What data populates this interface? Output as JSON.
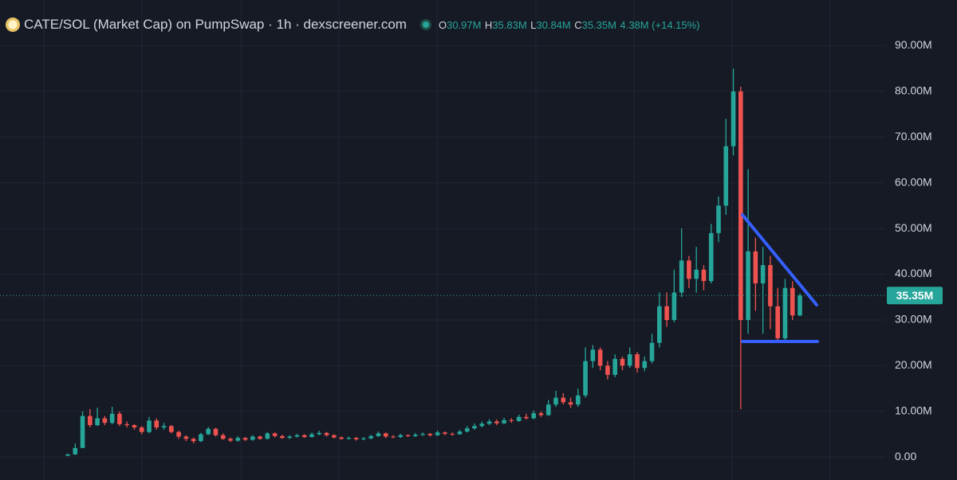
{
  "chart_data": {
    "type": "candlestick",
    "title": "CATE/SOL (Market Cap) on PumpSwap · 1h · dexscreener.com",
    "legend": {
      "o_label": "O",
      "o": "30.97M",
      "h_label": "H",
      "h": "35.83M",
      "l_label": "L",
      "l": "30.84M",
      "c_label": "C",
      "c": "35.35M",
      "change": "4.38M (+14.15%)"
    },
    "categories": [
      null,
      null,
      null,
      null,
      null,
      null,
      null,
      null,
      null,
      null,
      null,
      null,
      null,
      null,
      null,
      null,
      null,
      null,
      null,
      null,
      null,
      null,
      null,
      null,
      null,
      null,
      null,
      null,
      null,
      null,
      null,
      null,
      null,
      null,
      null,
      null,
      null,
      null,
      null,
      null,
      null,
      null,
      null,
      null,
      null,
      null,
      null,
      null,
      null,
      null,
      null,
      null,
      null,
      null,
      null,
      null,
      null,
      null,
      null,
      null,
      null,
      null,
      null,
      null,
      null,
      null,
      null,
      null,
      null,
      null,
      null,
      null,
      null,
      null,
      null,
      null,
      null,
      null,
      null,
      null,
      null,
      null,
      null,
      null,
      null,
      null,
      null,
      null,
      null,
      null,
      null,
      null,
      null,
      null,
      null,
      null,
      null,
      null,
      null,
      null
    ],
    "open": [
      0.3,
      0.6,
      2,
      9,
      7,
      8.5,
      7.5,
      9.5,
      7.2,
      7,
      6.5,
      5.5,
      8,
      6.5,
      6.8,
      5.5,
      4.5,
      4,
      3.5,
      5,
      6.2,
      4.8,
      4,
      3.6,
      4.2,
      3.8,
      4.5,
      4,
      5.2,
      4.6,
      4.2,
      4.5,
      4.8,
      4.4,
      5,
      5.3,
      4.8,
      4.3,
      4,
      4.2,
      3.9,
      4.1,
      4.6,
      5.2,
      4.5,
      4.4,
      4.8,
      4.6,
      4.9,
      5.1,
      4.8,
      5.4,
      5.1,
      5,
      5.6,
      6.3,
      6.8,
      7.3,
      7.8,
      7.4,
      8.1,
      7.9,
      8.8,
      8.5,
      9.6,
      9.2,
      11.5,
      13,
      12,
      11.5,
      13.5,
      21,
      23.5,
      20,
      18,
      21.5,
      20,
      22.5,
      19.5,
      21,
      25,
      33,
      30,
      36,
      43,
      39,
      41,
      38.5,
      49,
      55,
      68,
      80,
      30,
      45,
      38,
      42,
      33,
      26,
      37,
      30.97
    ],
    "high": [
      0.8,
      3,
      10,
      10.5,
      10.8,
      9,
      11,
      10,
      7.8,
      7.2,
      6.8,
      8.8,
      8.5,
      7.5,
      7,
      5.8,
      4.8,
      4.3,
      5.3,
      6.6,
      6.4,
      5.2,
      4.3,
      4.6,
      4.4,
      4.8,
      4.7,
      5.5,
      5.4,
      4.9,
      4.8,
      5.1,
      5,
      5.4,
      5.8,
      5.5,
      5,
      4.5,
      4.5,
      4.4,
      4.4,
      4.9,
      5.6,
      5.4,
      4.8,
      5.1,
      5,
      5.3,
      5.4,
      5.3,
      5.8,
      5.6,
      5.4,
      6,
      6.8,
      7.4,
      7.8,
      8.3,
      8.2,
      8.6,
      8.5,
      9.3,
      9.5,
      10.2,
      10,
      12.5,
      14.5,
      14,
      13,
      15,
      24,
      24.5,
      24,
      21,
      22.5,
      22,
      24,
      23,
      22,
      27,
      36,
      36,
      41,
      50,
      44,
      46,
      42,
      51,
      57,
      74,
      85,
      81,
      63,
      48,
      46,
      44,
      37,
      39,
      38.5,
      35.83
    ],
    "low": [
      0.3,
      0.5,
      2,
      6.5,
      6.8,
      7,
      7.2,
      6.8,
      6.5,
      6,
      5,
      5.2,
      6,
      6,
      5.2,
      4,
      3.5,
      3,
      3.3,
      4.8,
      4.5,
      3.8,
      3.3,
      3.4,
      3.5,
      3.6,
      3.8,
      3.9,
      4.3,
      4,
      4,
      4.3,
      4.2,
      4.3,
      4.8,
      4.5,
      4.1,
      3.8,
      3.8,
      3.6,
      3.7,
      3.9,
      4.4,
      4.2,
      4.1,
      4.2,
      4.4,
      4.4,
      4.6,
      4.5,
      4.6,
      4.8,
      4.7,
      4.9,
      5.4,
      6,
      6.5,
      7,
      7,
      7.2,
      7.5,
      7.7,
      8.2,
      8.3,
      8.8,
      9,
      11,
      11.5,
      10.8,
      11,
      13,
      19.5,
      19,
      17,
      17.5,
      19,
      19.5,
      18.5,
      18.8,
      20.5,
      24,
      28.5,
      29.5,
      35,
      37,
      36,
      36.5,
      38,
      47,
      53,
      66,
      10.5,
      27,
      32,
      27,
      28,
      25.5,
      25,
      30,
      30.84
    ],
    "close": [
      0.6,
      2,
      9,
      7,
      8.5,
      7.5,
      9.5,
      7.2,
      7,
      6.5,
      5.5,
      8,
      6.5,
      6.8,
      5.5,
      4.5,
      4,
      3.5,
      5,
      6.2,
      4.8,
      4,
      3.6,
      4.2,
      3.8,
      4.5,
      4,
      5.2,
      4.6,
      4.2,
      4.5,
      4.8,
      4.4,
      5,
      5.3,
      4.8,
      4.3,
      4,
      4.2,
      3.9,
      4.1,
      4.6,
      5.2,
      4.5,
      4.4,
      4.8,
      4.6,
      4.9,
      5.1,
      4.8,
      5.4,
      5.1,
      5,
      5.6,
      6.3,
      6.8,
      7.3,
      7.8,
      7.4,
      8.1,
      7.9,
      8.8,
      8.5,
      9.6,
      9.2,
      11.5,
      13,
      12,
      11.5,
      13.5,
      21,
      23.5,
      20,
      18,
      21.5,
      20,
      22.5,
      19.5,
      21,
      25,
      33,
      30,
      36,
      43,
      39,
      41,
      38.5,
      49,
      55,
      68,
      80,
      30,
      45,
      38,
      42,
      33,
      26,
      37,
      31,
      35.35
    ],
    "up_color": "#26a69a",
    "down_color": "#ef5350",
    "last_value": 35.35,
    "last_value_label": "35.35M",
    "ylim": [
      -5,
      96.5
    ],
    "yticks": [
      {
        "value": 0,
        "label": "0.00"
      },
      {
        "value": 10,
        "label": "10.00M"
      },
      {
        "value": 20,
        "label": "20.00M"
      },
      {
        "value": 30,
        "label": "30.00M"
      },
      {
        "value": 40,
        "label": "40.00M"
      },
      {
        "value": 50,
        "label": "50.00M"
      },
      {
        "value": 60,
        "label": "60.00M"
      },
      {
        "value": 70,
        "label": "70.00M"
      },
      {
        "value": 80,
        "label": "80.00M"
      },
      {
        "value": 90,
        "label": "90.00M"
      }
    ],
    "grid": true
  }
}
